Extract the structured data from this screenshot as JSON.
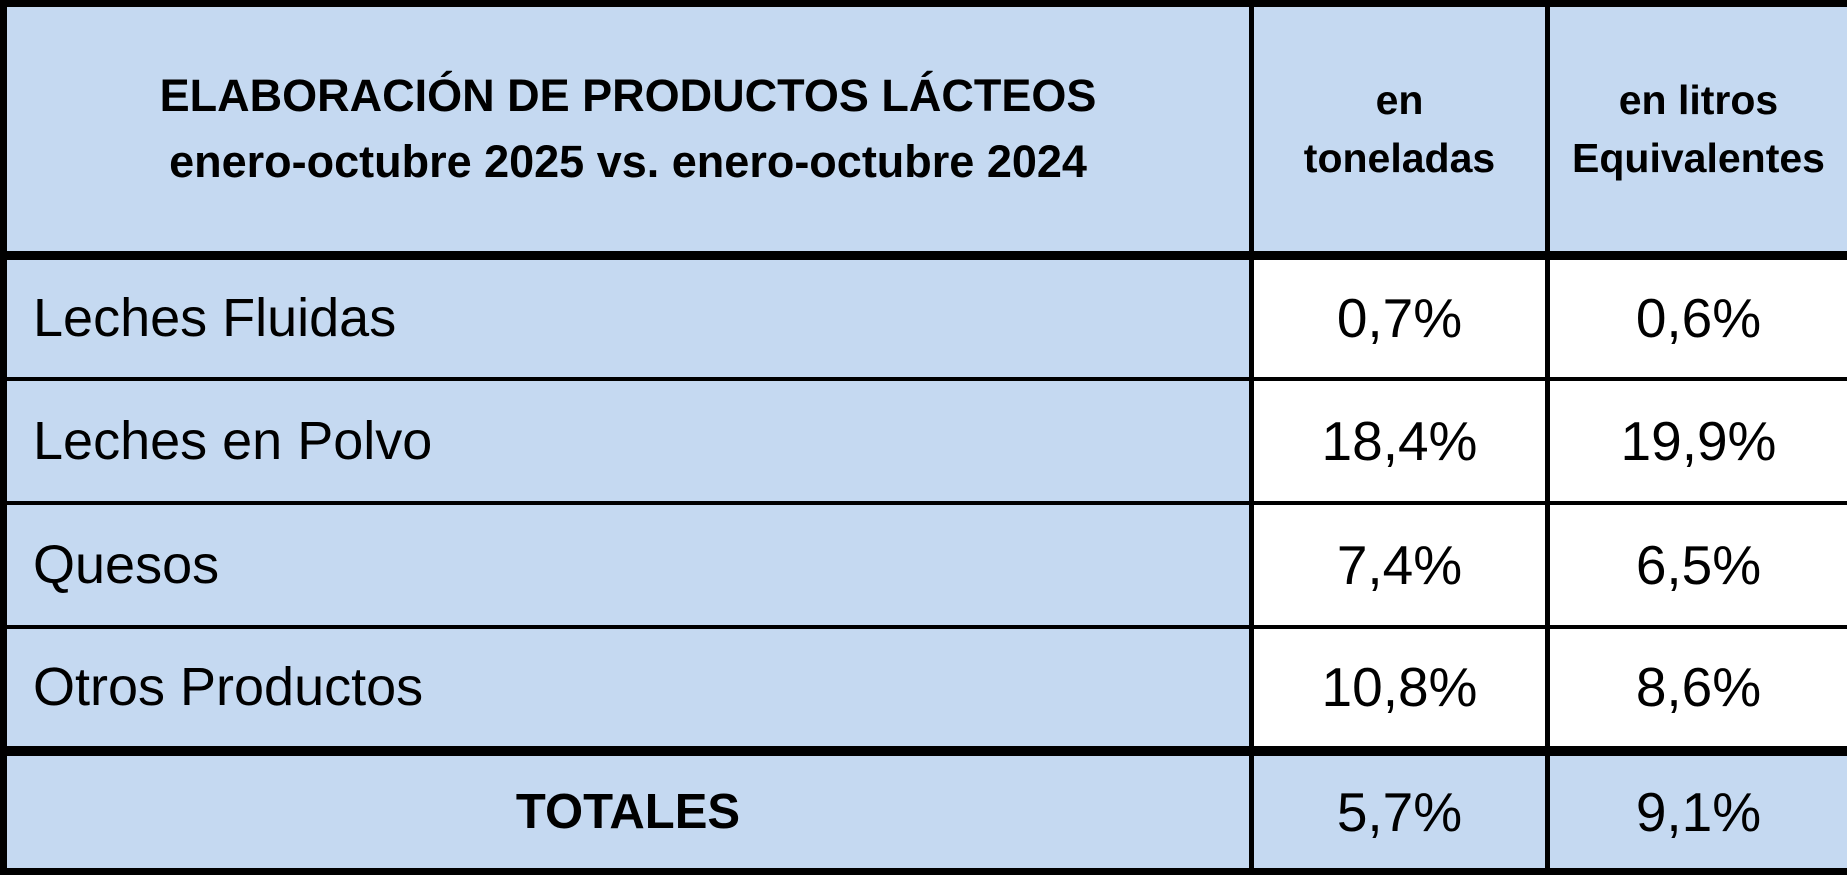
{
  "table": {
    "title_line1": "ELABORACIÓN DE PRODUCTOS LÁCTEOS",
    "title_line2": "enero-octubre 2025 vs. enero-octubre 2024",
    "columns": [
      {
        "line1": "en",
        "line2": "toneladas"
      },
      {
        "line1": "en litros",
        "line2": "Equivalentes"
      }
    ],
    "rows": [
      {
        "label": "Leches Fluidas",
        "en_toneladas": "0,7%",
        "en_litros": "0,6%"
      },
      {
        "label": "Leches en Polvo",
        "en_toneladas": "18,4%",
        "en_litros": "19,9%"
      },
      {
        "label": "Quesos",
        "en_toneladas": "7,4%",
        "en_litros": "6,5%"
      },
      {
        "label": "Otros Productos",
        "en_toneladas": "10,8%",
        "en_litros": "8,6%"
      }
    ],
    "totals": {
      "label": "TOTALES",
      "en_toneladas": "5,7%",
      "en_litros": "9,1%"
    }
  },
  "colors": {
    "cell_blue": "#C5D9F1",
    "cell_white": "#FFFFFF",
    "border_black": "#000000"
  },
  "chart_data": {
    "type": "table",
    "title": "ELABORACIÓN DE PRODUCTOS LÁCTEOS enero-octubre 2025 vs. enero-octubre 2024",
    "columns": [
      "",
      "en toneladas",
      "en litros Equivalentes"
    ],
    "rows": [
      [
        "Leches Fluidas",
        "0,7%",
        "0,6%"
      ],
      [
        "Leches en Polvo",
        "18,4%",
        "19,9%"
      ],
      [
        "Quesos",
        "7,4%",
        "6,5%"
      ],
      [
        "Otros Productos",
        "10,8%",
        "8,6%"
      ],
      [
        "TOTALES",
        "5,7%",
        "9,1%"
      ]
    ],
    "values_numeric_percent": {
      "en_toneladas": [
        0.7,
        18.4,
        7.4,
        10.8,
        5.7
      ],
      "en_litros_equivalentes": [
        0.6,
        19.9,
        6.5,
        8.6,
        9.1
      ]
    }
  }
}
